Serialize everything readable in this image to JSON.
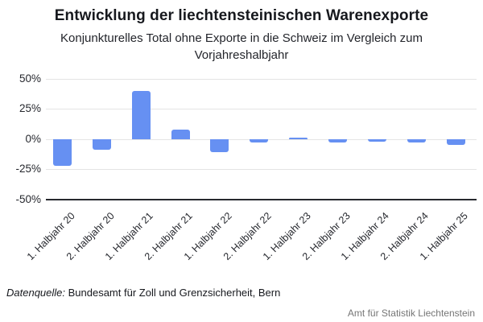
{
  "header": {
    "title": "Entwicklung der liechtensteinischen Warenexporte",
    "subtitle": "Konjunkturelles Total ohne Exporte in die Schweiz im Vergleich zum Vorjahreshalbjahr"
  },
  "chart_data": {
    "type": "bar",
    "title": "Entwicklung der liechtensteinischen Warenexporte",
    "subtitle": "Konjunkturelles Total ohne Exporte in die Schweiz im Vergleich zum Vorjahreshalbjahr",
    "categories": [
      "1. Halbjahr 20",
      "2. Halbjahr 20",
      "1. Halbjahr 21",
      "2. Halbjahr 21",
      "1. Halbjahr 22",
      "2. Halbjahr 22",
      "1. Halbjahr 23",
      "2. Halbjahr 23",
      "1. Halbjahr 24",
      "2. Halbjahr 24",
      "1. Halbjahr 25"
    ],
    "values": [
      -22,
      -9,
      40,
      8,
      -11,
      -3,
      1,
      -3,
      -2,
      -3,
      -5
    ],
    "unit": "%",
    "xlabel": "",
    "ylabel": "",
    "ylim": [
      -50,
      50
    ],
    "yticks": [
      50,
      25,
      0,
      -25,
      -50
    ],
    "ytick_labels": [
      "50%",
      "25%",
      "0%",
      "-25%",
      "-50%"
    ],
    "grid": true,
    "legend": "none",
    "bar_color": "#6690f2"
  },
  "source": {
    "label": "Datenquelle:",
    "text": " Bundesamt für Zoll und Grenzsicherheit, Bern"
  },
  "footer": {
    "text": "Amt für Statistik Liechtenstein"
  },
  "colors": {
    "bar": "#6690f2",
    "gridline": "#e4e4e4",
    "axis": "#27292e",
    "text_dark": "#16181d",
    "footer_gray": "#767676",
    "background": "#ffffff"
  }
}
